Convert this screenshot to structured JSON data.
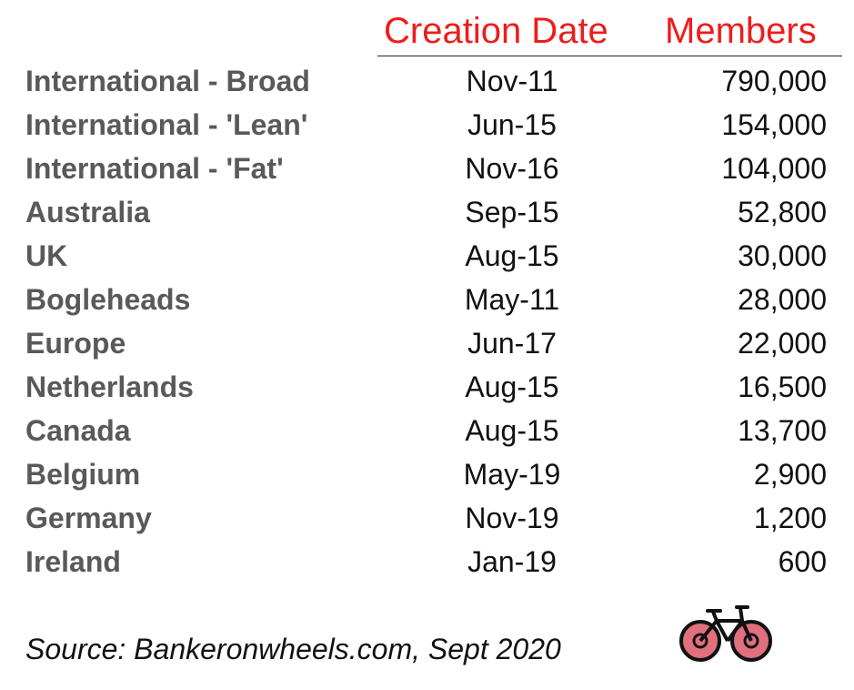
{
  "header": {
    "creation_date": "Creation Date",
    "members": "Members"
  },
  "table": {
    "rows": [
      {
        "name": "International - Broad",
        "date": "Nov-11",
        "members": "790,000"
      },
      {
        "name": "International - 'Lean'",
        "date": "Jun-15",
        "members": "154,000"
      },
      {
        "name": "International - 'Fat'",
        "date": "Nov-16",
        "members": "104,000"
      },
      {
        "name": "Australia",
        "date": "Sep-15",
        "members": "52,800"
      },
      {
        "name": "UK",
        "date": "Aug-15",
        "members": "30,000"
      },
      {
        "name": "Bogleheads",
        "date": "May-11",
        "members": "28,000"
      },
      {
        "name": "Europe",
        "date": "Jun-17",
        "members": "22,000"
      },
      {
        "name": "Netherlands",
        "date": "Aug-15",
        "members": "16,500"
      },
      {
        "name": "Canada",
        "date": "Aug-15",
        "members": "13,700"
      },
      {
        "name": "Belgium",
        "date": "May-19",
        "members": "2,900"
      },
      {
        "name": "Germany",
        "date": "Nov-19",
        "members": "1,200"
      },
      {
        "name": "Ireland",
        "date": "Jan-19",
        "members": "600"
      }
    ]
  },
  "footer": {
    "source": "Source: Bankeronwheels.com, Sept 2020",
    "logo_icon": "bicycle-icon"
  },
  "colors": {
    "header_text": "#ee1c1c",
    "name_text": "#595959",
    "value_text": "#111111",
    "bike_wheel_fill": "#e0707e",
    "bike_frame": "#c8102e"
  }
}
